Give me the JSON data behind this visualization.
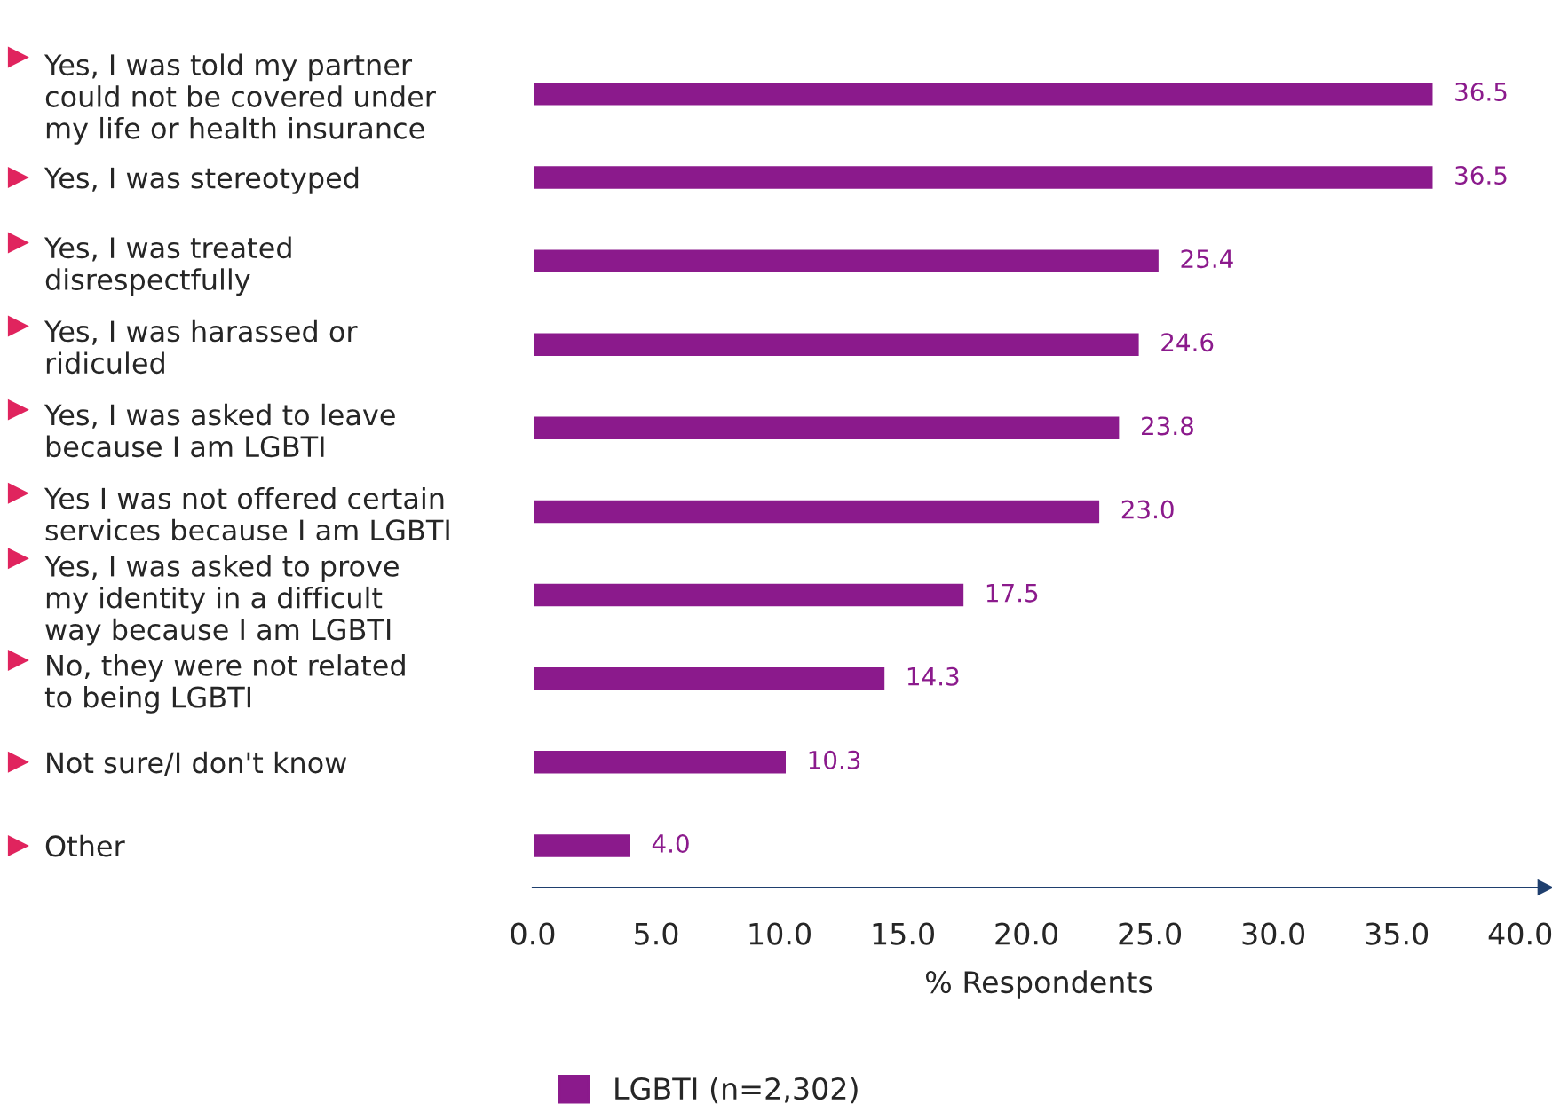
{
  "chart_data": {
    "type": "bar",
    "orientation": "horizontal",
    "categories": [
      "Yes, I was told my partner\ncould not be covered under\nmy life or health insurance",
      "Yes, I was stereotyped",
      "Yes, I was treated\ndisrespectfully",
      "Yes, I was harassed or\nridiculed",
      "Yes, I was asked to leave\nbecause I am LGBTI",
      "Yes I was not offered certain\nservices because I am LGBTI",
      "Yes, I was asked to prove\nmy identity in a difficult\nway because I am LGBTI",
      "No, they were not related\nto being LGBTI",
      "Not sure/I don't know",
      "Other"
    ],
    "series": [
      {
        "name": "LGBTI (n=2,302)",
        "color": "#8b1a8c",
        "values": [
          36.5,
          36.5,
          25.4,
          24.6,
          23.8,
          23.0,
          17.5,
          14.3,
          10.3,
          4.0
        ],
        "value_labels": [
          "36.5",
          "36.5",
          "25.4",
          "24.6",
          "23.8",
          "23.0",
          "17.5",
          "14.3",
          "10.3",
          "4.0"
        ]
      }
    ],
    "xlabel": "% Respondents",
    "xlim": [
      0,
      41
    ],
    "xticks": [
      {
        "value": 0,
        "label": "0.0"
      },
      {
        "value": 5,
        "label": "5.0"
      },
      {
        "value": 10,
        "label": "10.0"
      },
      {
        "value": 15,
        "label": "15.0"
      },
      {
        "value": 20,
        "label": "20.0"
      },
      {
        "value": 25,
        "label": "25.0"
      },
      {
        "value": 30,
        "label": "30.0"
      },
      {
        "value": 35,
        "label": "35.0"
      },
      {
        "value": 40,
        "label": "40.0"
      }
    ],
    "grid": false,
    "legend": "bottom"
  }
}
